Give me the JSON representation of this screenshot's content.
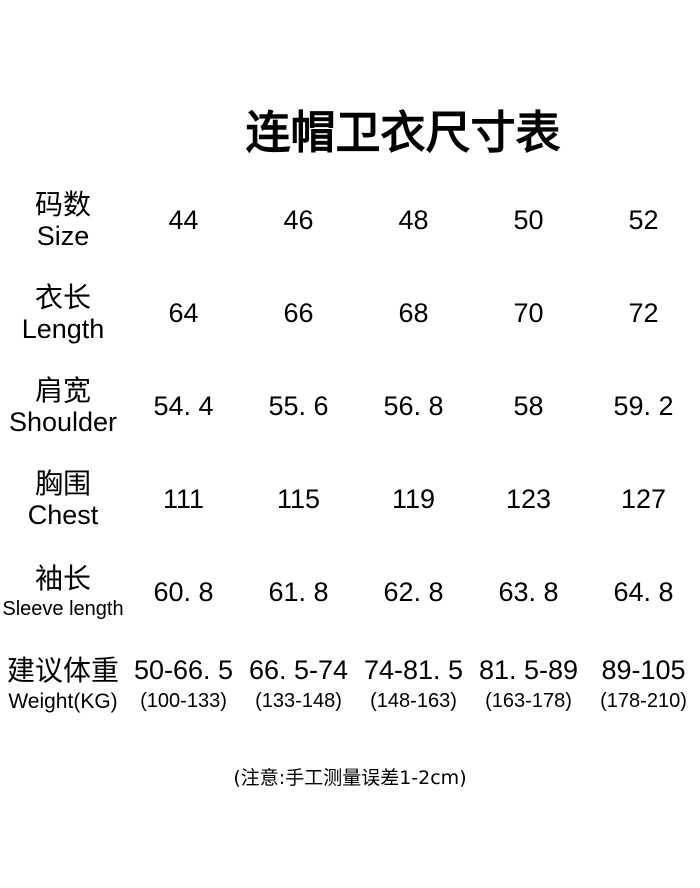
{
  "title": "连帽卫衣尺寸表",
  "note": "(注意:手工测量误差1-2cm)",
  "table": {
    "rows": [
      {
        "label_zh": "码数",
        "label_en": "Size",
        "values": [
          "44",
          "46",
          "48",
          "50",
          "52"
        ]
      },
      {
        "label_zh": "衣长",
        "label_en": "Length",
        "values": [
          "64",
          "66",
          "68",
          "70",
          "72"
        ]
      },
      {
        "label_zh": "肩宽",
        "label_en": "Shoulder",
        "values": [
          "54. 4",
          "55. 6",
          "56. 8",
          "58",
          "59. 2"
        ]
      },
      {
        "label_zh": "胸围",
        "label_en": "Chest",
        "values": [
          "111",
          "115",
          "119",
          "123",
          "127"
        ]
      },
      {
        "label_zh": "袖长",
        "label_en": "Sleeve length",
        "values": [
          "60. 8",
          "61. 8",
          "62. 8",
          "63. 8",
          "64. 8"
        ]
      },
      {
        "label_zh": "建议体重",
        "label_en": "Weight(KG)",
        "values": [
          "50-66. 5",
          "66. 5-74",
          "74-81. 5",
          "81. 5-89",
          "89-105"
        ],
        "sub_values": [
          "(100-133)",
          "(133-148)",
          "(148-163)",
          "(163-178)",
          "(178-210)"
        ]
      }
    ]
  },
  "chart_data": {
    "type": "table",
    "title": "连帽卫衣尺寸表",
    "categories": [
      44,
      46,
      48,
      50,
      52
    ],
    "series": [
      {
        "name": "码数 Size",
        "values": [
          44,
          46,
          48,
          50,
          52
        ]
      },
      {
        "name": "衣长 Length",
        "values": [
          64,
          66,
          68,
          70,
          72
        ]
      },
      {
        "name": "肩宽 Shoulder",
        "values": [
          54.4,
          55.6,
          56.8,
          58,
          59.2
        ]
      },
      {
        "name": "胸围 Chest",
        "values": [
          111,
          115,
          119,
          123,
          127
        ]
      },
      {
        "name": "袖长 Sleeve length",
        "values": [
          60.8,
          61.8,
          62.8,
          63.8,
          64.8
        ]
      },
      {
        "name": "建议体重 Weight(KG)",
        "values": [
          "50-66.5",
          "66.5-74",
          "74-81.5",
          "81.5-89",
          "89-105"
        ]
      },
      {
        "name": "建议体重 Weight(KG) 括号范围",
        "values": [
          "100-133",
          "133-148",
          "148-163",
          "163-178",
          "178-210"
        ]
      }
    ],
    "annotations": [
      "(注意:手工测量误差1-2cm)"
    ],
    "layout": {
      "grid": false,
      "borders": false,
      "header_position": "left-column-labels"
    }
  },
  "colors": {
    "background": "#ffffff",
    "text": "#000000"
  }
}
